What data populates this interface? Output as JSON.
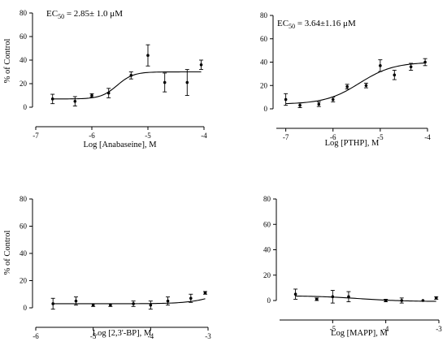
{
  "chart_data": [
    {
      "type": "scatter",
      "xlabel": "Log [Anabaseine], M",
      "ylabel": "% of Control",
      "annotation": {
        "prefix": "EC",
        "sub": "50",
        "text": " = 2.85± 1.0  μM"
      },
      "xlim": [
        -7,
        -4
      ],
      "ylim": [
        0,
        80
      ],
      "xticks": [
        -7,
        -6,
        -5,
        -4
      ],
      "yticks": [
        0,
        20,
        40,
        60,
        80
      ],
      "points": [
        {
          "x": -6.7,
          "y": 7,
          "err": 4
        },
        {
          "x": -6.3,
          "y": 5,
          "err": 4
        },
        {
          "x": -6.0,
          "y": 10,
          "err": 1.5
        },
        {
          "x": -5.7,
          "y": 12,
          "err": 4
        },
        {
          "x": -5.3,
          "y": 27,
          "err": 3
        },
        {
          "x": -5.0,
          "y": 44,
          "err": 9
        },
        {
          "x": -4.7,
          "y": 21,
          "err": 8
        },
        {
          "x": -4.3,
          "y": 21,
          "err": 11
        },
        {
          "x": -4.05,
          "y": 36,
          "err": 4
        }
      ],
      "fit": {
        "bottom": 7,
        "top": 30,
        "logEC50": -5.55,
        "hill": 3.0
      }
    },
    {
      "type": "scatter",
      "xlabel": "Log [PTHP], M",
      "ylabel": "",
      "annotation": {
        "prefix": "EC",
        "sub": "50",
        "text": " = 3.64±1.16  μM"
      },
      "xlim": [
        -7.2,
        -4
      ],
      "ylim": [
        0,
        80
      ],
      "xticks": [
        -7,
        -6,
        -5,
        -4
      ],
      "yticks": [
        0,
        20,
        40,
        60,
        80
      ],
      "points": [
        {
          "x": -7.0,
          "y": 8,
          "err": 5
        },
        {
          "x": -6.7,
          "y": 3,
          "err": 2
        },
        {
          "x": -6.3,
          "y": 4,
          "err": 2
        },
        {
          "x": -6.0,
          "y": 8,
          "err": 2
        },
        {
          "x": -5.7,
          "y": 19,
          "err": 2
        },
        {
          "x": -5.3,
          "y": 20,
          "err": 2
        },
        {
          "x": -5.0,
          "y": 37,
          "err": 5
        },
        {
          "x": -4.7,
          "y": 29,
          "err": 4
        },
        {
          "x": -4.35,
          "y": 36,
          "err": 3
        },
        {
          "x": -4.05,
          "y": 40,
          "err": 3
        }
      ],
      "fit": {
        "bottom": 4,
        "top": 40,
        "logEC50": -5.44,
        "hill": 1.2
      }
    },
    {
      "type": "scatter",
      "xlabel": "Log [2,3'-BP], M",
      "ylabel": "% of Control",
      "xlim": [
        -6,
        -3
      ],
      "ylim": [
        0,
        80
      ],
      "xticks": [
        -6,
        -5,
        -4,
        -3
      ],
      "yticks": [
        0,
        20,
        40,
        60,
        80
      ],
      "points": [
        {
          "x": -5.7,
          "y": 3,
          "err": 4
        },
        {
          "x": -5.3,
          "y": 5,
          "err": 3
        },
        {
          "x": -5.0,
          "y": 2,
          "err": 1
        },
        {
          "x": -4.7,
          "y": 2,
          "err": 1
        },
        {
          "x": -4.3,
          "y": 3,
          "err": 2
        },
        {
          "x": -4.0,
          "y": 2,
          "err": 3
        },
        {
          "x": -3.7,
          "y": 5,
          "err": 3
        },
        {
          "x": -3.3,
          "y": 7,
          "err": 3
        },
        {
          "x": -3.05,
          "y": 11,
          "err": 1
        }
      ],
      "fit": {
        "bottom": 3,
        "top": 20,
        "logEC50": -2.7,
        "hill": 1.6
      }
    },
    {
      "type": "scatter",
      "xlabel": "Log [MAPP], M",
      "ylabel": "",
      "xlim": [
        -6,
        -3
      ],
      "ylim": [
        0,
        80
      ],
      "xticks": [
        -5,
        -4,
        -3
      ],
      "yticks": [
        0,
        20,
        40,
        60,
        80
      ],
      "points": [
        {
          "x": -5.7,
          "y": 5,
          "err": 4
        },
        {
          "x": -5.3,
          "y": 1,
          "err": 1
        },
        {
          "x": -5.0,
          "y": 3,
          "err": 5
        },
        {
          "x": -4.7,
          "y": 3,
          "err": 4
        },
        {
          "x": -4.0,
          "y": 0,
          "err": 1
        },
        {
          "x": -3.7,
          "y": 0,
          "err": 2
        },
        {
          "x": -3.3,
          "y": 0,
          "err": 0
        },
        {
          "x": -3.05,
          "y": 2,
          "err": 1
        }
      ],
      "fit": {
        "bottom": 3.8,
        "top": -0.8,
        "logEC50": -4.5,
        "hill": 1.0
      }
    }
  ]
}
